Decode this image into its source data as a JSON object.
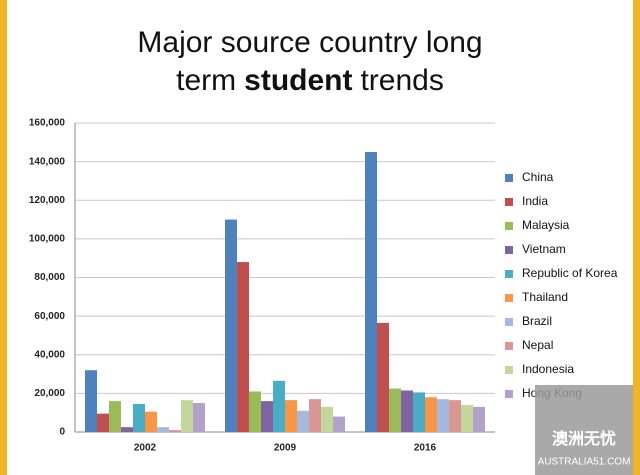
{
  "chart_data": {
    "type": "bar",
    "title_lines": [
      [
        "Major source country long"
      ],
      [
        "term",
        "student",
        "trends"
      ]
    ],
    "categories": [
      "2002",
      "2009",
      "2016"
    ],
    "series": [
      {
        "name": "China",
        "color": "#4f81bd",
        "values": [
          32000,
          110000,
          145000
        ]
      },
      {
        "name": "India",
        "color": "#c0504d",
        "values": [
          9500,
          88000,
          56500
        ]
      },
      {
        "name": "Malaysia",
        "color": "#9bbb59",
        "values": [
          16000,
          21000,
          22500
        ]
      },
      {
        "name": "Vietnam",
        "color": "#8064a2",
        "values": [
          2500,
          16000,
          21500
        ]
      },
      {
        "name": "Republic of Korea",
        "color": "#4bacc6",
        "values": [
          14500,
          26500,
          20500
        ]
      },
      {
        "name": "Thailand",
        "color": "#f79646",
        "values": [
          10500,
          16500,
          18000
        ]
      },
      {
        "name": "Brazil",
        "color": "#a5b8de",
        "values": [
          2500,
          11000,
          17000
        ]
      },
      {
        "name": "Nepal",
        "color": "#d99694",
        "values": [
          1000,
          17000,
          16500
        ]
      },
      {
        "name": "Indonesia",
        "color": "#c3d69b",
        "values": [
          16500,
          13000,
          14000
        ]
      },
      {
        "name": "Hong Kong",
        "color": "#b3a2c7",
        "values": [
          15000,
          8000,
          13000
        ]
      }
    ],
    "ylim": [
      0,
      160000
    ],
    "yticks": [
      0,
      {
        "value": 20000,
        "label": "20,000"
      },
      {
        "value": 40000,
        "label": "40,000"
      },
      {
        "value": 60000,
        "label": "60,000"
      },
      {
        "value": 80000,
        "label": "80,000"
      },
      {
        "value": 100000,
        "label": "100,000"
      },
      {
        "value": 120000,
        "label": "120,000"
      },
      {
        "value": 140000,
        "label": "140,000"
      },
      {
        "value": 160000,
        "label": "160,000"
      }
    ],
    "grid": true,
    "legend": "right"
  },
  "watermark": {
    "brand": "澳洲无忧",
    "url": "AUSTRALIA51.COM"
  }
}
